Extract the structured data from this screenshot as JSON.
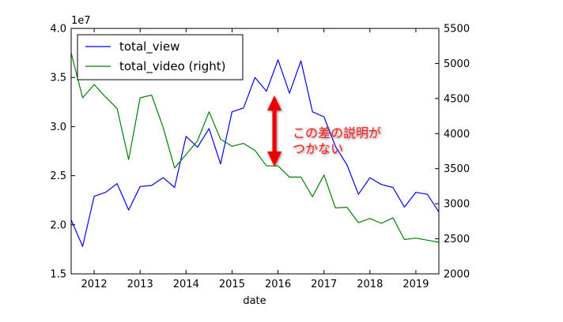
{
  "chart_data": {
    "type": "line",
    "xlabel": "date",
    "x_ticks": [
      "2012",
      "2013",
      "2014",
      "2015",
      "2016",
      "2017",
      "2018",
      "2019"
    ],
    "x_range": [
      "2011-07",
      "2019-07"
    ],
    "y_left": {
      "ticks": [
        "1.5",
        "2.0",
        "2.5",
        "3.0",
        "3.5",
        "4.0"
      ],
      "range": [
        1.5,
        4.0
      ],
      "multiplier": "1e7"
    },
    "y_right": {
      "ticks": [
        "2000",
        "2500",
        "3000",
        "3500",
        "4000",
        "4500",
        "5000",
        "5500"
      ],
      "range": [
        2000,
        5500
      ]
    },
    "legend": {
      "position": "upper-left",
      "entries": [
        "total_view",
        "total_video (right)"
      ]
    },
    "annotation": {
      "lines": [
        "この差の説明が",
        "つかない"
      ],
      "color": "#ff0000",
      "arrow": "double-headed vertical"
    },
    "x": [
      "2011-07",
      "2011-10",
      "2012-01",
      "2012-04",
      "2012-07",
      "2012-10",
      "2013-01",
      "2013-04",
      "2013-07",
      "2013-10",
      "2014-01",
      "2014-04",
      "2014-07",
      "2014-10",
      "2015-01",
      "2015-04",
      "2015-07",
      "2015-10",
      "2016-01",
      "2016-04",
      "2016-07",
      "2016-10",
      "2017-01",
      "2017-04",
      "2017-07",
      "2017-10",
      "2018-01",
      "2018-04",
      "2018-07",
      "2018-10",
      "2019-01",
      "2019-04",
      "2019-07"
    ],
    "series": [
      {
        "name": "total_view",
        "axis": "left",
        "color": "#0000ff",
        "values": [
          2.05,
          1.78,
          2.29,
          2.33,
          2.42,
          2.15,
          2.39,
          2.4,
          2.48,
          2.38,
          2.9,
          2.79,
          2.98,
          2.62,
          3.15,
          3.19,
          3.5,
          3.36,
          3.68,
          3.34,
          3.67,
          3.15,
          3.1,
          2.8,
          2.61,
          2.31,
          2.48,
          2.41,
          2.38,
          2.18,
          2.33,
          2.31,
          2.13
        ]
      },
      {
        "name": "total_video (right)",
        "axis": "right",
        "color": "#008000",
        "values": [
          5150,
          4510,
          4700,
          4520,
          4360,
          3630,
          4510,
          4550,
          4090,
          3510,
          3700,
          3900,
          4310,
          3920,
          3820,
          3860,
          3760,
          3540,
          3540,
          3380,
          3380,
          3100,
          3410,
          2940,
          2950,
          2730,
          2790,
          2720,
          2800,
          2490,
          2510,
          2480,
          2450
        ]
      }
    ]
  }
}
